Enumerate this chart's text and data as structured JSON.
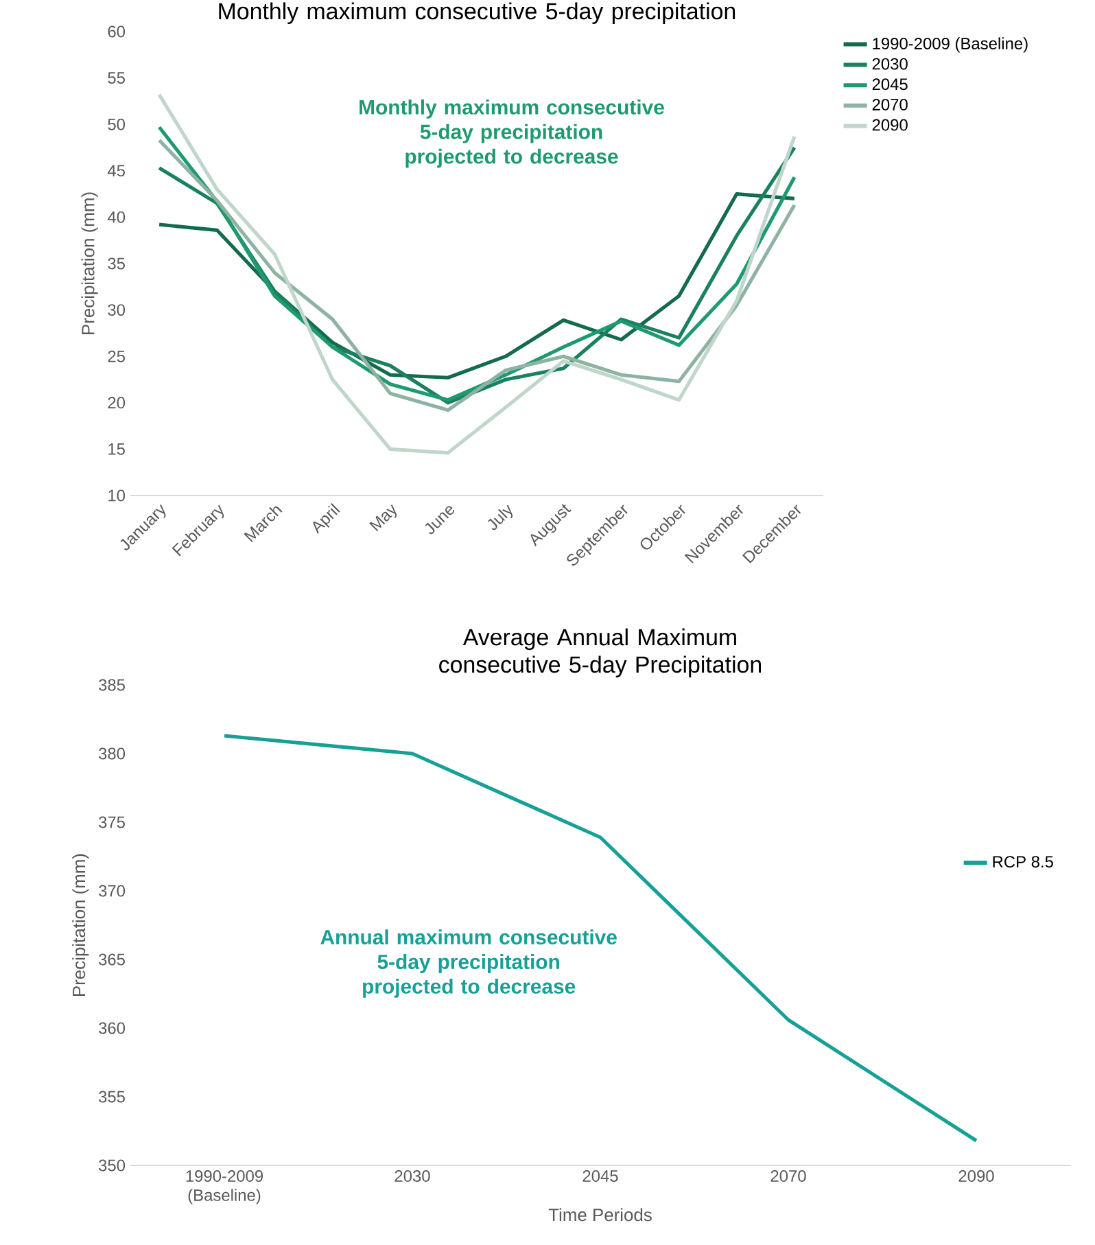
{
  "chart_data": [
    {
      "type": "line",
      "title": "Monthly maximum consecutive 5-day precipitation",
      "ylabel": "Precipitation (mm)",
      "categories": [
        "January",
        "February",
        "March",
        "April",
        "May",
        "June",
        "July",
        "August",
        "September",
        "October",
        "November",
        "December"
      ],
      "series": [
        {
          "name": "1990-2009 (Baseline)",
          "color": "#136b4b",
          "values": [
            39.2,
            38.6,
            32,
            26.5,
            23,
            22.7,
            25,
            28.9,
            26.8,
            31.5,
            42.5,
            42
          ]
        },
        {
          "name": "2030",
          "color": "#1a8060",
          "values": [
            45.3,
            41.5,
            32,
            26,
            24,
            20,
            22.5,
            23.7,
            29,
            27,
            38,
            47.5
          ]
        },
        {
          "name": "2045",
          "color": "#1f9a70",
          "values": [
            49.7,
            41.7,
            31.5,
            26,
            22,
            20.3,
            23,
            26,
            28.8,
            26.2,
            32.8,
            44.3
          ]
        },
        {
          "name": "2070",
          "color": "#8fb3a2",
          "values": [
            48.3,
            41.8,
            34,
            29,
            21,
            19.2,
            23.5,
            25,
            23,
            22.3,
            30.5,
            41.3
          ]
        },
        {
          "name": "2090",
          "color": "#c0d6cb",
          "values": [
            53.2,
            43,
            36,
            22.5,
            15,
            14.6,
            19.5,
            24.5,
            22.5,
            20.3,
            31,
            48.7
          ]
        }
      ],
      "ylim": [
        10,
        60
      ],
      "yticks": [
        10,
        15,
        20,
        25,
        30,
        35,
        40,
        45,
        50,
        55,
        60
      ],
      "grid": false,
      "legend": "top right",
      "annotations": [
        "Monthly maximum consecutive 5-day precipitation projected to decrease"
      ]
    },
    {
      "type": "line",
      "title": "Average Annual Maximum consecutive 5-day Precipitation",
      "xlabel": "Time Periods",
      "ylabel": "Precipitation (mm)",
      "categories": [
        "1990-2009 (Baseline)",
        "2030",
        "2045",
        "2070",
        "2090"
      ],
      "series": [
        {
          "name": "RCP 8.5",
          "color": "#16a096",
          "values": [
            381.3,
            380,
            373.9,
            360.6,
            351.8
          ]
        }
      ],
      "ylim": [
        350,
        385
      ],
      "yticks": [
        350,
        355,
        360,
        365,
        370,
        375,
        380,
        385
      ],
      "grid": false,
      "legend": "right",
      "annotations": [
        "Annual maximum consecutive 5-day precipitation projected to decrease"
      ]
    }
  ]
}
